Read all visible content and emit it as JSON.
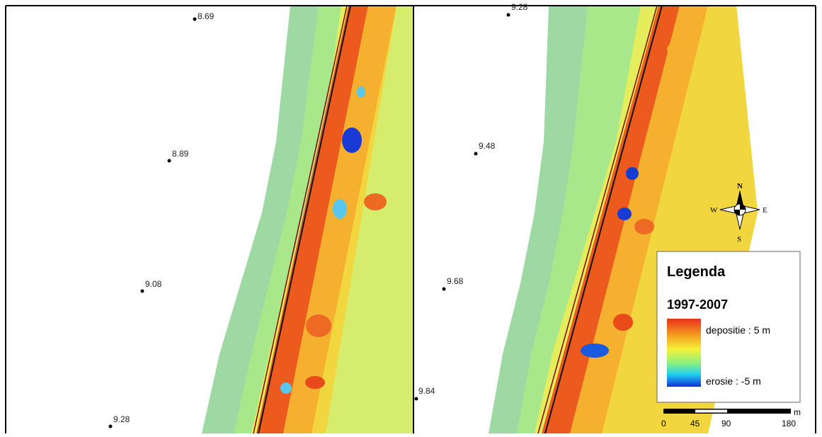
{
  "left_map": {
    "points": [
      {
        "label": "8.69"
      },
      {
        "label": "8.89"
      },
      {
        "label": "9.08"
      },
      {
        "label": "9.28"
      }
    ]
  },
  "right_map": {
    "points": [
      {
        "label": "9.28"
      },
      {
        "label": "9.48"
      },
      {
        "label": "9.68"
      },
      {
        "label": "9.84"
      }
    ]
  },
  "compass": {
    "north": "N",
    "south": "S",
    "west": "W",
    "east": "E"
  },
  "legend": {
    "title": "Legenda",
    "period": "1997-2007",
    "high": "depositie : 5 m",
    "low": "erosie : -5 m"
  },
  "scale_bar": {
    "ticks": [
      "0",
      "45",
      "90",
      "180"
    ],
    "unit": "m"
  }
}
